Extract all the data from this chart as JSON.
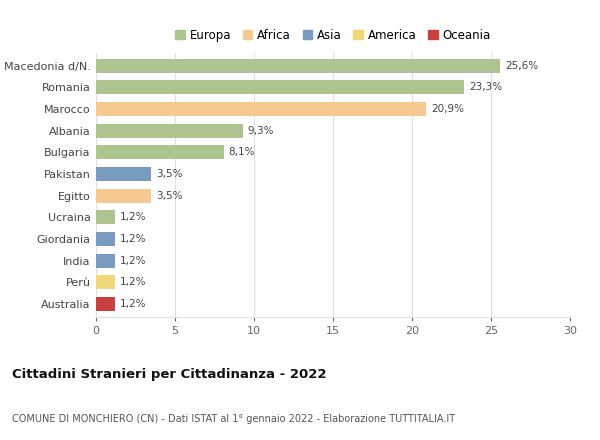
{
  "categories": [
    "Macedonia d/N.",
    "Romania",
    "Marocco",
    "Albania",
    "Bulgaria",
    "Pakistan",
    "Egitto",
    "Ucraina",
    "Giordania",
    "India",
    "Perù",
    "Australia"
  ],
  "values": [
    25.6,
    23.3,
    20.9,
    9.3,
    8.1,
    3.5,
    3.5,
    1.2,
    1.2,
    1.2,
    1.2,
    1.2
  ],
  "labels": [
    "25,6%",
    "23,3%",
    "20,9%",
    "9,3%",
    "8,1%",
    "3,5%",
    "3,5%",
    "1,2%",
    "1,2%",
    "1,2%",
    "1,2%",
    "1,2%"
  ],
  "colors": [
    "#aec490",
    "#aec490",
    "#f5c990",
    "#aec490",
    "#aec490",
    "#7a9bc0",
    "#f5c990",
    "#aec490",
    "#7a9bc0",
    "#7a9bc0",
    "#f0d878",
    "#c84040"
  ],
  "legend_labels": [
    "Europa",
    "Africa",
    "Asia",
    "America",
    "Oceania"
  ],
  "legend_colors": [
    "#aec490",
    "#f5c990",
    "#7a9bc0",
    "#f0d878",
    "#c84040"
  ],
  "title": "Cittadini Stranieri per Cittadinanza - 2022",
  "subtitle": "COMUNE DI MONCHIERO (CN) - Dati ISTAT al 1° gennaio 2022 - Elaborazione TUTTITALIA.IT",
  "xlim": [
    0,
    30
  ],
  "xticks": [
    0,
    5,
    10,
    15,
    20,
    25,
    30
  ],
  "background_color": "#ffffff",
  "grid_color": "#e0e0e0",
  "bar_height": 0.65
}
